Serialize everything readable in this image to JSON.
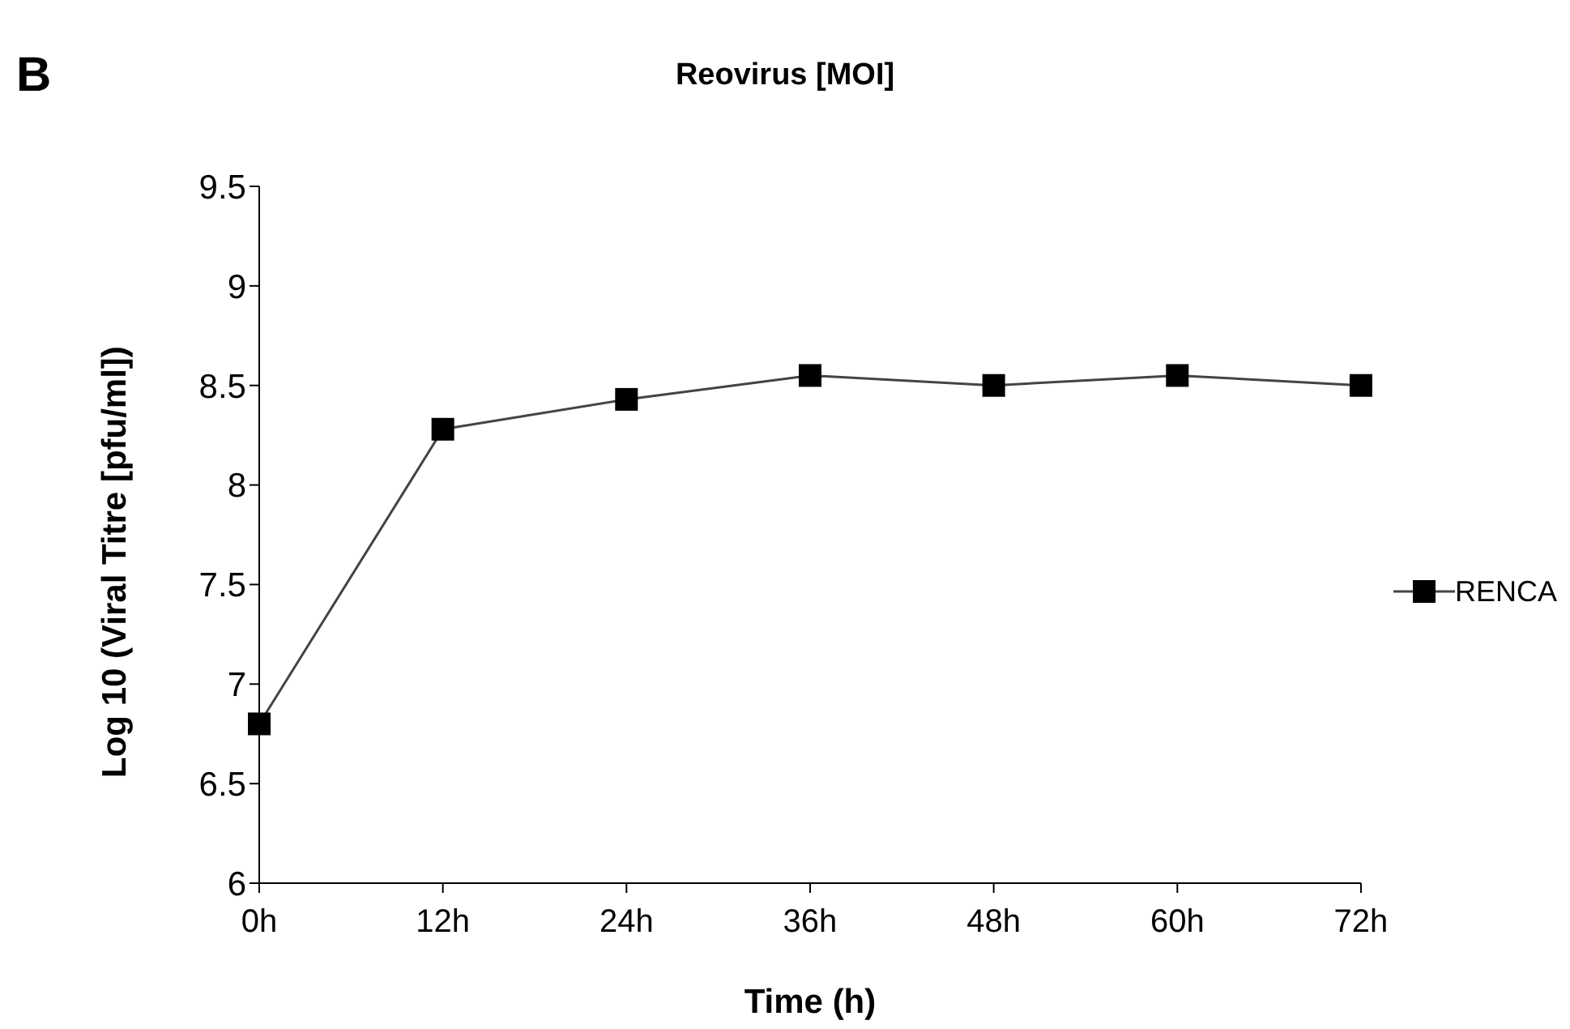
{
  "chart_data": {
    "type": "line",
    "title": "Reovirus [MOI]",
    "xlabel": "Time (h)",
    "ylabel": "Log 10 (Viral Titre [pfu/ml])",
    "annotations": [
      "B"
    ],
    "categories": [
      "0h",
      "12h",
      "24h",
      "36h",
      "48h",
      "60h",
      "72h"
    ],
    "series": [
      {
        "name": "RENCA",
        "color": "#000000",
        "values": [
          6.8,
          8.28,
          8.43,
          8.55,
          8.5,
          8.55,
          8.5
        ]
      }
    ],
    "ylim": [
      6,
      9.5
    ],
    "yticks": [
      6,
      6.5,
      7,
      7.5,
      8,
      8.5,
      9,
      9.5
    ],
    "grid": false,
    "legend": "right",
    "marker": "square",
    "line_style": "solid"
  }
}
